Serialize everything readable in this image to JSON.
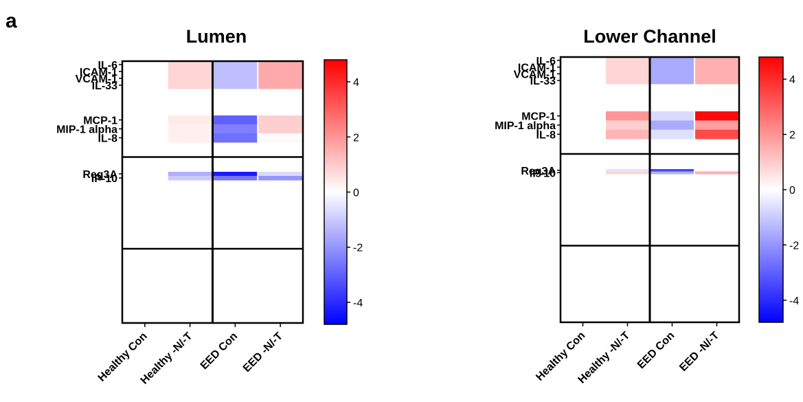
{
  "panel_label": "a",
  "chart_data": [
    {
      "type": "heatmap",
      "title": "Lumen",
      "columns": [
        "Healthy Con",
        "Healthy -N/-T",
        "EED Con",
        "EED -N/-T"
      ],
      "rows": [
        "IL-6",
        "ICAM-1",
        "VCAM-1",
        "IL-33",
        "MCP-1",
        "MIP-1 alpha",
        "IL-8",
        "Reg3A",
        "IP-10"
      ],
      "groups": [
        4,
        3,
        2
      ],
      "values": [
        [
          0,
          0.8,
          -1.2,
          1.6
        ],
        [
          0,
          0.8,
          -1.2,
          1.6
        ],
        [
          0,
          0.8,
          -1.2,
          1.6
        ],
        [
          0,
          0.8,
          -1.2,
          1.6
        ],
        [
          0,
          0.4,
          -3.0,
          0.9
        ],
        [
          0,
          0.3,
          -2.4,
          0.9
        ],
        [
          0,
          0.3,
          -2.7,
          0.1
        ],
        [
          0,
          -1.5,
          -4.3,
          -0.7
        ],
        [
          0,
          -1.0,
          -2.6,
          -2.0
        ]
      ],
      "colorbar": {
        "min": -4.8,
        "max": 4.8,
        "ticks": [
          4,
          2,
          0,
          -2,
          -4
        ],
        "tick_labels": [
          "4",
          "2",
          "0",
          "-2",
          "-4"
        ]
      },
      "colors": {
        "low": "#0000ff",
        "mid": "#ffffff",
        "high": "#ff0000"
      }
    },
    {
      "type": "heatmap",
      "title": "Lower Channel",
      "columns": [
        "Healthy Con",
        "Healthy -N/-T",
        "EED Con",
        "EED -N/-T"
      ],
      "rows": [
        "IL-6",
        "ICAM-1",
        "VCAM-1",
        "IL-33",
        "MCP-1",
        "MIP-1 alpha",
        "IL-8",
        "Reg3A",
        "IP-10"
      ],
      "groups": [
        4,
        3,
        2
      ],
      "values": [
        [
          0,
          0.8,
          -1.6,
          1.5
        ],
        [
          0,
          0.8,
          -1.6,
          1.5
        ],
        [
          0,
          0.8,
          -1.6,
          1.5
        ],
        [
          0,
          0.8,
          -1.6,
          1.5
        ],
        [
          0,
          2.0,
          -0.7,
          4.6
        ],
        [
          0,
          0.9,
          -1.6,
          1.8
        ],
        [
          0,
          1.4,
          -0.6,
          3.4
        ],
        [
          0,
          -0.5,
          -3.5,
          0.1
        ],
        [
          0,
          0.8,
          -1.5,
          1.5
        ]
      ],
      "colorbar": {
        "min": -4.8,
        "max": 4.8,
        "ticks": [
          4,
          2,
          0,
          -2,
          -4
        ],
        "tick_labels": [
          "4",
          "2",
          "0",
          "-2",
          "-4"
        ]
      },
      "colors": {
        "low": "#0000ff",
        "mid": "#ffffff",
        "high": "#ff0000"
      }
    }
  ]
}
